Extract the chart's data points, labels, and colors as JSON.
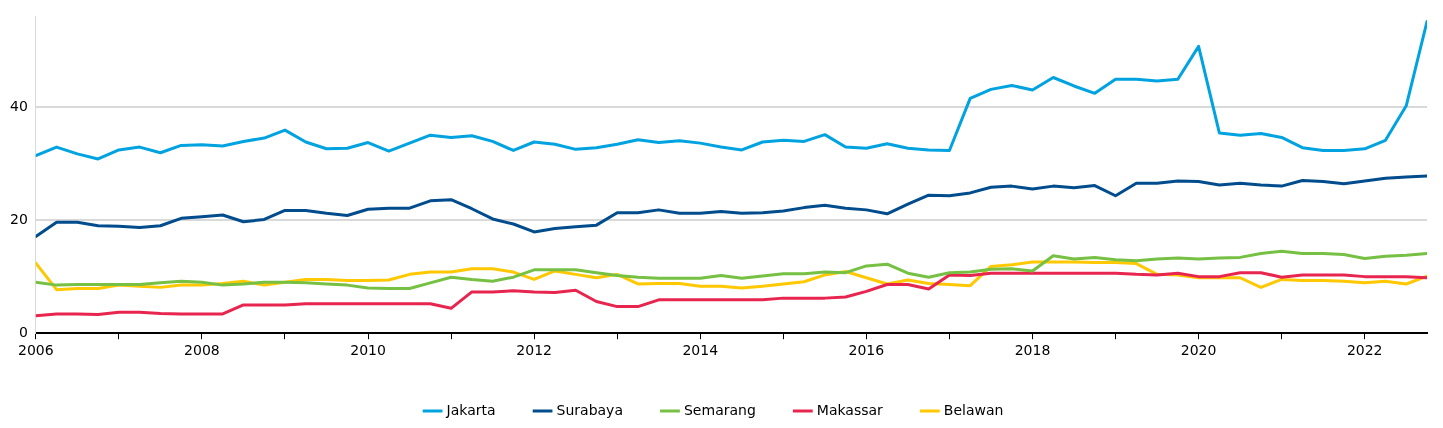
{
  "chart_data": {
    "type": "line",
    "x": [
      2006,
      2006.25,
      2006.5,
      2006.75,
      2007,
      2007.25,
      2007.5,
      2007.75,
      2008,
      2008.25,
      2008.5,
      2008.75,
      2009,
      2009.25,
      2009.5,
      2009.75,
      2010,
      2010.25,
      2010.5,
      2010.75,
      2011,
      2011.25,
      2011.5,
      2011.75,
      2012,
      2012.25,
      2012.5,
      2012.75,
      2013,
      2013.25,
      2013.5,
      2013.75,
      2014,
      2014.25,
      2014.5,
      2014.75,
      2015,
      2015.25,
      2015.5,
      2015.75,
      2016,
      2016.25,
      2016.5,
      2016.75,
      2017,
      2017.25,
      2017.5,
      2017.75,
      2018,
      2018.25,
      2018.5,
      2018.75,
      2019,
      2019.25,
      2019.5,
      2019.75,
      2020,
      2020.25,
      2020.5,
      2020.75,
      2021,
      2021.25,
      2021.5,
      2021.75,
      2022,
      2022.25,
      2022.5,
      2022.75
    ],
    "series": [
      {
        "name": "Jakarta",
        "color": "#00a3e0",
        "values": [
          31.4,
          32.9,
          31.7,
          30.8,
          32.4,
          32.9,
          31.9,
          33.2,
          33.3,
          33.1,
          33.9,
          34.5,
          35.9,
          33.8,
          32.6,
          32.7,
          33.7,
          32.2,
          33.6,
          35.0,
          34.6,
          34.9,
          33.9,
          32.3,
          33.8,
          33.4,
          32.5,
          32.8,
          33.4,
          34.2,
          33.7,
          34.0,
          33.6,
          32.9,
          32.4,
          33.8,
          34.1,
          33.9,
          35.1,
          32.9,
          32.7,
          33.5,
          32.7,
          32.4,
          32.3,
          41.5,
          43.1,
          43.8,
          43.0,
          45.2,
          43.7,
          42.4,
          44.9,
          44.9,
          44.6,
          44.9,
          50.7,
          35.4,
          35.0,
          35.3,
          34.6,
          32.8,
          32.3,
          32.3,
          32.6,
          34.1,
          40.2,
          55.1
        ]
      },
      {
        "name": "Surabaya",
        "color": "#004c8c",
        "values": [
          17.1,
          19.6,
          19.6,
          19.0,
          18.9,
          18.7,
          19.0,
          20.3,
          20.6,
          20.9,
          19.7,
          20.1,
          21.7,
          21.7,
          21.2,
          20.8,
          21.9,
          22.1,
          22.1,
          23.4,
          23.6,
          22.0,
          20.2,
          19.3,
          17.9,
          18.5,
          18.8,
          19.1,
          21.3,
          21.3,
          21.8,
          21.2,
          21.2,
          21.5,
          21.2,
          21.3,
          21.6,
          22.2,
          22.6,
          22.1,
          21.8,
          21.1,
          22.8,
          24.4,
          24.3,
          24.8,
          25.8,
          26.0,
          25.5,
          26.0,
          25.7,
          26.1,
          24.3,
          26.5,
          26.5,
          26.9,
          26.8,
          26.2,
          26.5,
          26.2,
          26.0,
          27.0,
          26.8,
          26.4,
          26.9,
          27.4,
          27.6,
          27.8
        ]
      },
      {
        "name": "Semarang",
        "color": "#76c043",
        "values": [
          9.0,
          8.5,
          8.6,
          8.6,
          8.6,
          8.6,
          8.9,
          9.2,
          9.0,
          8.5,
          8.7,
          9.0,
          9.0,
          8.9,
          8.7,
          8.5,
          8.0,
          7.9,
          7.9,
          8.9,
          9.9,
          9.5,
          9.2,
          9.9,
          11.2,
          11.2,
          11.2,
          10.7,
          10.2,
          9.9,
          9.7,
          9.7,
          9.7,
          10.2,
          9.7,
          10.1,
          10.5,
          10.5,
          10.8,
          10.7,
          11.9,
          12.2,
          10.6,
          9.9,
          10.7,
          10.8,
          11.3,
          11.4,
          11.0,
          13.7,
          13.1,
          13.4,
          13.0,
          12.8,
          13.1,
          13.3,
          13.1,
          13.3,
          13.4,
          14.1,
          14.5,
          14.1,
          14.1,
          13.9,
          13.2,
          13.6,
          13.8,
          14.1
        ]
      },
      {
        "name": "Makassar",
        "color": "#e8254f",
        "values": [
          3.1,
          3.4,
          3.4,
          3.3,
          3.7,
          3.7,
          3.5,
          3.4,
          3.4,
          3.4,
          5.0,
          5.0,
          5.0,
          5.2,
          5.2,
          5.2,
          5.2,
          5.2,
          5.2,
          5.2,
          4.4,
          7.3,
          7.3,
          7.5,
          7.3,
          7.2,
          7.6,
          5.6,
          4.7,
          4.7,
          5.9,
          5.9,
          5.9,
          5.9,
          5.9,
          5.9,
          6.2,
          6.2,
          6.2,
          6.4,
          7.4,
          8.6,
          8.6,
          7.8,
          10.3,
          10.2,
          10.6,
          10.6,
          10.6,
          10.6,
          10.6,
          10.6,
          10.6,
          10.4,
          10.3,
          10.6,
          10.0,
          10.0,
          10.7,
          10.7,
          9.9,
          10.3,
          10.3,
          10.3,
          10.0,
          10.0,
          10.0,
          9.8
        ]
      },
      {
        "name": "Belawan",
        "color": "#ffc800",
        "values": [
          12.4,
          7.7,
          7.9,
          7.9,
          8.5,
          8.3,
          8.1,
          8.5,
          8.5,
          8.8,
          9.2,
          8.5,
          9.0,
          9.5,
          9.5,
          9.3,
          9.3,
          9.4,
          10.4,
          10.8,
          10.8,
          11.4,
          11.4,
          10.8,
          9.5,
          11.0,
          10.4,
          9.8,
          10.4,
          8.7,
          8.8,
          8.8,
          8.3,
          8.3,
          8.0,
          8.3,
          8.7,
          9.1,
          10.3,
          10.9,
          9.8,
          8.7,
          9.4,
          8.8,
          8.6,
          8.4,
          11.8,
          12.1,
          12.6,
          12.6,
          12.6,
          12.5,
          12.5,
          12.3,
          10.4,
          10.3,
          9.8,
          9.8,
          9.8,
          8.1,
          9.5,
          9.3,
          9.3,
          9.2,
          8.9,
          9.2,
          8.7,
          10.1
        ]
      }
    ],
    "xlim": [
      2006,
      2022.75
    ],
    "xticks": [
      2006,
      {
        "value": 2007,
        "label": null
      },
      2008,
      {
        "value": 2009,
        "label": null
      },
      2010,
      {
        "value": 2011,
        "label": null
      },
      2012,
      {
        "value": 2013,
        "label": null
      },
      2014,
      {
        "value": 2015,
        "label": null
      },
      2016,
      {
        "value": 2017,
        "label": null
      },
      2018,
      {
        "value": 2019,
        "label": null
      },
      2020,
      {
        "value": 2021,
        "label": null
      },
      2022
    ],
    "ylim": [
      0,
      56
    ],
    "yticks": [
      0,
      20,
      40
    ],
    "grid": "y",
    "legend": "bottom",
    "marker": "none",
    "line_style": "solid"
  }
}
